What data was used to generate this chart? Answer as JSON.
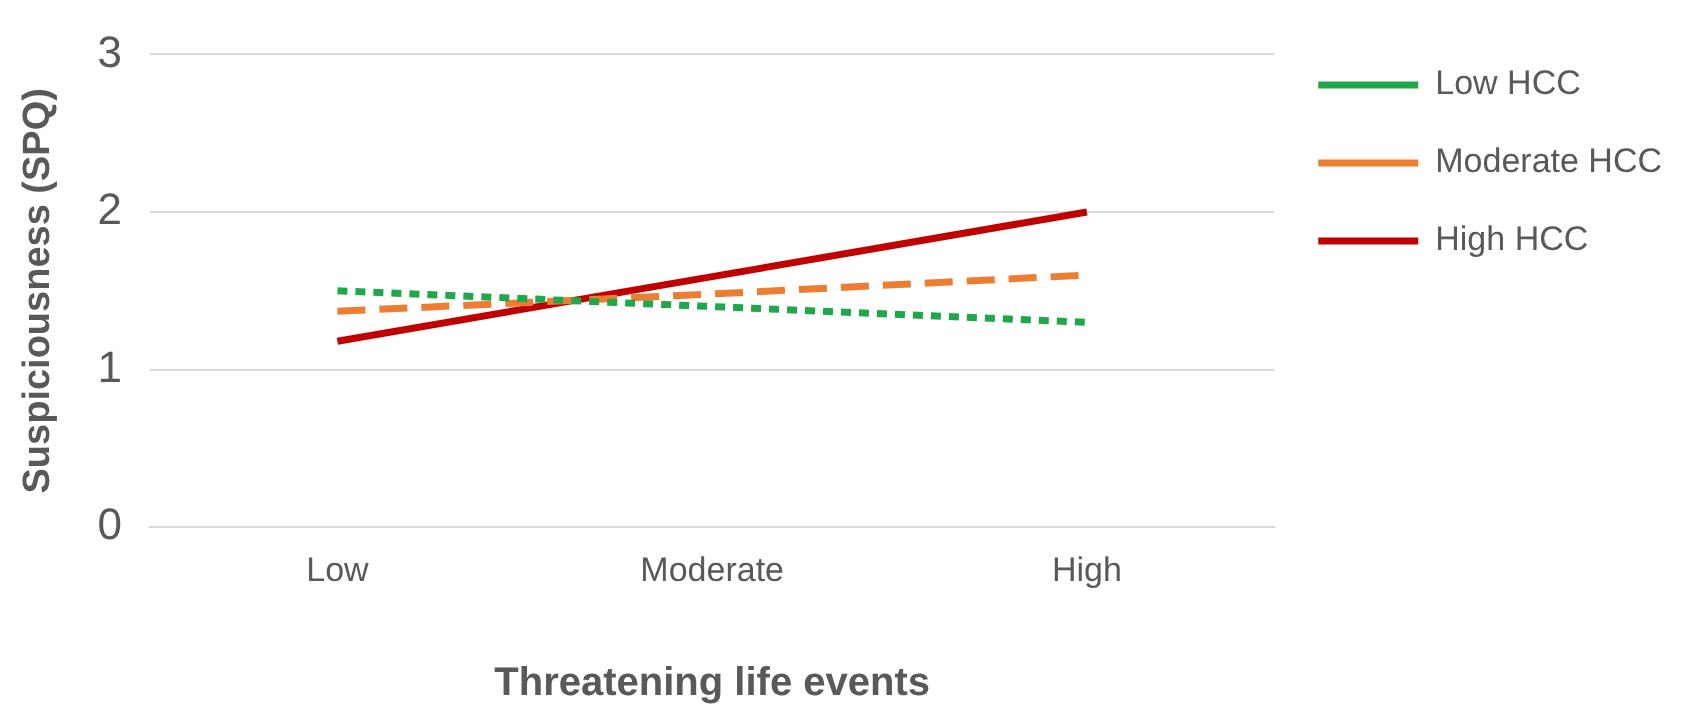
{
  "chart_data": {
    "type": "line",
    "xlabel": "Threatening life events",
    "ylabel": "Suspiciousness (SPQ)",
    "categories": [
      "Low",
      "Moderate",
      "High"
    ],
    "series": [
      {
        "name": "Low HCC",
        "color": "#1ea84a",
        "line_style": "dotted",
        "values": [
          1.5,
          1.4,
          1.3
        ]
      },
      {
        "name": "Moderate HCC",
        "color": "#ed7d31",
        "line_style": "dashed",
        "values": [
          1.37,
          1.48,
          1.6
        ]
      },
      {
        "name": "High HCC",
        "color": "#c00000",
        "line_style": "solid",
        "values": [
          1.18,
          1.59,
          2.0
        ]
      }
    ],
    "ylim": [
      0,
      3
    ],
    "yticks": [
      0,
      1,
      2,
      3
    ],
    "grid": "y",
    "legend": "right",
    "marker": "none"
  }
}
